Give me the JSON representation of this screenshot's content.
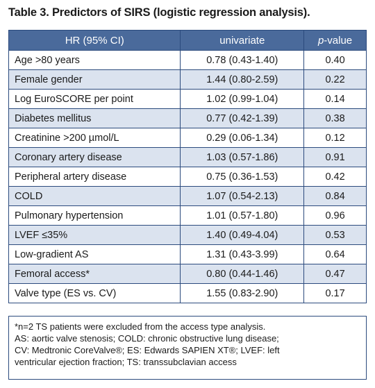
{
  "caption": "Table 3. Predictors of SIRS (logistic regression analysis).",
  "header": {
    "col1": "HR (95% CI)",
    "col2": "univariate",
    "col3_italic": "p",
    "col3_rest": "-value"
  },
  "rows": [
    {
      "label": "Age >80 years",
      "univariate": "0.78 (0.43-1.40)",
      "pvalue": "0.40"
    },
    {
      "label": "Female gender",
      "univariate": "1.44 (0.80-2.59)",
      "pvalue": "0.22"
    },
    {
      "label": "Log EuroSCORE per point",
      "univariate": "1.02 (0.99-1.04)",
      "pvalue": "0.14"
    },
    {
      "label": "Diabetes mellitus",
      "univariate": "0.77 (0.42-1.39)",
      "pvalue": "0.38"
    },
    {
      "label": "Creatinine >200 µmol/L",
      "univariate": "0.29 (0.06-1.34)",
      "pvalue": "0.12"
    },
    {
      "label": "Coronary artery disease",
      "univariate": "1.03 (0.57-1.86)",
      "pvalue": "0.91"
    },
    {
      "label": "Peripheral artery disease",
      "univariate": "0.75 (0.36-1.53)",
      "pvalue": "0.42"
    },
    {
      "label": "COLD",
      "univariate": "1.07 (0.54-2.13)",
      "pvalue": "0.84"
    },
    {
      "label": "Pulmonary hypertension",
      "univariate": "1.01 (0.57-1.80)",
      "pvalue": "0.96"
    },
    {
      "label": "LVEF ≤35%",
      "univariate": "1.40 (0.49-4.04)",
      "pvalue": "0.53"
    },
    {
      "label": "Low-gradient AS",
      "univariate": "1.31 (0.43-3.99)",
      "pvalue": "0.64"
    },
    {
      "label": "Femoral access*",
      "univariate": "0.80 (0.44-1.46)",
      "pvalue": "0.47"
    },
    {
      "label": "Valve type (ES vs. CV)",
      "univariate": "1.55 (0.83-2.90)",
      "pvalue": "0.17"
    }
  ],
  "footnote": [
    "*n=2 TS patients were excluded from the access type analysis.",
    "AS: aortic valve stenosis; COLD: chronic obstructive lung disease;",
    "CV: Medtronic CoreValve®; ES: Edwards SAPIEN XT®; LVEF: left",
    "ventricular ejection fraction; TS: transsubclavian access"
  ],
  "colors": {
    "header_bg": "#4a6a9b",
    "row_alt_bg": "#dbe3ef",
    "border": "#2b4a7d"
  }
}
